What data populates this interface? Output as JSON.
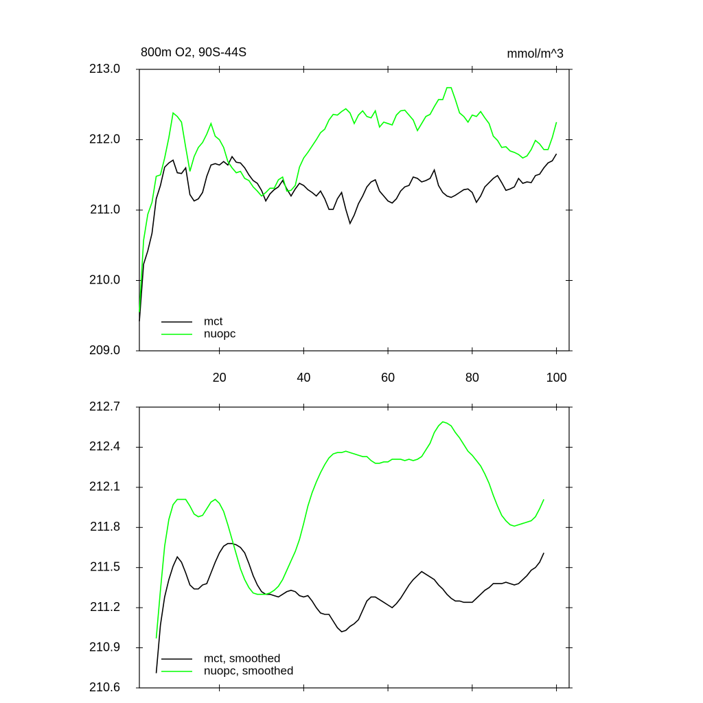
{
  "chart_data": [
    {
      "type": "line",
      "title": "800m O2, 90S-44S",
      "units": "mmol/m^3",
      "legend": "lower left",
      "x": [
        1,
        2,
        3,
        4,
        5,
        6,
        7,
        8,
        9,
        10,
        11,
        12,
        13,
        14,
        15,
        16,
        17,
        18,
        19,
        20,
        21,
        22,
        23,
        24,
        25,
        26,
        27,
        28,
        29,
        30,
        31,
        32,
        33,
        34,
        35,
        36,
        37,
        38,
        39,
        40,
        41,
        42,
        43,
        44,
        45,
        46,
        47,
        48,
        49,
        50,
        51,
        52,
        53,
        54,
        55,
        56,
        57,
        58,
        59,
        60,
        61,
        62,
        63,
        64,
        65,
        66,
        67,
        68,
        69,
        70,
        71,
        72,
        73,
        74,
        75,
        76,
        77,
        78,
        79,
        80,
        81,
        82,
        83,
        84,
        85,
        86,
        87,
        88,
        89,
        90,
        91,
        92,
        93,
        94,
        95,
        96,
        97,
        98,
        99,
        100
      ],
      "series": [
        {
          "name": "mct",
          "color": "#000000",
          "values": [
            209.42,
            210.23,
            210.42,
            210.67,
            211.16,
            211.35,
            211.61,
            211.67,
            211.71,
            211.53,
            211.52,
            211.6,
            211.22,
            211.13,
            211.16,
            211.25,
            211.48,
            211.64,
            211.66,
            211.64,
            211.69,
            211.64,
            211.76,
            211.68,
            211.67,
            211.6,
            211.5,
            211.42,
            211.38,
            211.28,
            211.13,
            211.23,
            211.29,
            211.33,
            211.42,
            211.3,
            211.2,
            211.3,
            211.38,
            211.35,
            211.29,
            211.25,
            211.2,
            211.27,
            211.16,
            211.01,
            211.01,
            211.16,
            211.25,
            211.01,
            210.81,
            210.93,
            211.09,
            211.2,
            211.33,
            211.4,
            211.43,
            211.27,
            211.2,
            211.13,
            211.1,
            211.16,
            211.27,
            211.33,
            211.35,
            211.47,
            211.45,
            211.4,
            211.42,
            211.45,
            211.57,
            211.35,
            211.25,
            211.2,
            211.18,
            211.21,
            211.25,
            211.29,
            211.3,
            211.25,
            211.11,
            211.2,
            211.33,
            211.39,
            211.45,
            211.49,
            211.39,
            211.28,
            211.3,
            211.33,
            211.45,
            211.38,
            211.4,
            211.39,
            211.49,
            211.51,
            211.6,
            211.67,
            211.7,
            211.8
          ]
        },
        {
          "name": "nuopc",
          "color": "#00ff00",
          "values": [
            209.55,
            210.57,
            210.94,
            211.11,
            211.48,
            211.5,
            211.74,
            212.03,
            212.38,
            212.33,
            212.25,
            211.89,
            211.55,
            211.76,
            211.89,
            211.96,
            212.08,
            212.23,
            212.05,
            212.0,
            211.89,
            211.69,
            211.6,
            211.53,
            211.55,
            211.45,
            211.42,
            211.33,
            211.27,
            211.2,
            211.25,
            211.31,
            211.31,
            211.43,
            211.47,
            211.27,
            211.28,
            211.35,
            211.61,
            211.74,
            211.82,
            211.91,
            212.0,
            212.1,
            212.15,
            212.28,
            212.36,
            212.35,
            212.4,
            212.44,
            212.38,
            212.23,
            212.35,
            212.41,
            212.33,
            212.31,
            212.41,
            212.18,
            212.25,
            212.23,
            212.21,
            212.35,
            212.41,
            212.42,
            212.35,
            212.28,
            212.13,
            212.23,
            212.33,
            212.36,
            212.47,
            212.57,
            212.57,
            212.74,
            212.74,
            212.57,
            212.38,
            212.33,
            212.25,
            212.35,
            212.33,
            212.4,
            212.31,
            212.23,
            212.05,
            211.99,
            211.89,
            211.9,
            211.84,
            211.82,
            211.79,
            211.74,
            211.77,
            211.86,
            211.99,
            211.94,
            211.86,
            211.86,
            212.03,
            212.25
          ]
        }
      ],
      "xlim": [
        1,
        103
      ],
      "xticks": [
        20,
        40,
        60,
        80,
        100
      ],
      "ylim": [
        209,
        213
      ],
      "yticks": [
        {
          "value": 209,
          "label": "209.0"
        },
        {
          "value": 210,
          "label": "210.0"
        },
        {
          "value": 211,
          "label": "211.0"
        },
        {
          "value": 212,
          "label": "212.0"
        },
        {
          "value": 213,
          "label": "213.0"
        }
      ]
    },
    {
      "type": "line",
      "legend": "lower left",
      "x": [
        5,
        6,
        7,
        8,
        9,
        10,
        11,
        12,
        13,
        14,
        15,
        16,
        17,
        18,
        19,
        20,
        21,
        22,
        23,
        24,
        25,
        26,
        27,
        28,
        29,
        30,
        31,
        32,
        33,
        34,
        35,
        36,
        37,
        38,
        39,
        40,
        41,
        42,
        43,
        44,
        45,
        46,
        47,
        48,
        49,
        50,
        51,
        52,
        53,
        54,
        55,
        56,
        57,
        58,
        59,
        60,
        61,
        62,
        63,
        64,
        65,
        66,
        67,
        68,
        69,
        70,
        71,
        72,
        73,
        74,
        75,
        76,
        77,
        78,
        79,
        80,
        81,
        82,
        83,
        84,
        85,
        86,
        87,
        88,
        89,
        90,
        91,
        92,
        93,
        94,
        95,
        96,
        97
      ],
      "series": [
        {
          "name": "mct, smoothed",
          "color": "#000000",
          "values": [
            210.71,
            211.07,
            211.28,
            211.41,
            211.51,
            211.58,
            211.54,
            211.46,
            211.37,
            211.34,
            211.34,
            211.37,
            211.38,
            211.46,
            211.54,
            211.61,
            211.66,
            211.68,
            211.68,
            211.67,
            211.65,
            211.61,
            211.53,
            211.44,
            211.37,
            211.32,
            211.3,
            211.3,
            211.29,
            211.28,
            211.3,
            211.32,
            211.33,
            211.32,
            211.29,
            211.28,
            211.29,
            211.25,
            211.2,
            211.16,
            211.15,
            211.15,
            211.1,
            211.05,
            211.02,
            211.03,
            211.06,
            211.08,
            211.11,
            211.18,
            211.25,
            211.28,
            211.28,
            211.26,
            211.24,
            211.22,
            211.2,
            211.23,
            211.27,
            211.32,
            211.37,
            211.41,
            211.44,
            211.47,
            211.45,
            211.43,
            211.41,
            211.37,
            211.34,
            211.3,
            211.27,
            211.25,
            211.25,
            211.24,
            211.24,
            211.24,
            211.27,
            211.3,
            211.33,
            211.35,
            211.38,
            211.38,
            211.38,
            211.39,
            211.38,
            211.37,
            211.38,
            211.41,
            211.44,
            211.48,
            211.5,
            211.54,
            211.61
          ]
        },
        {
          "name": "nuopc, smoothed",
          "color": "#00ff00",
          "values": [
            210.97,
            211.33,
            211.66,
            211.86,
            211.97,
            212.01,
            212.01,
            212.01,
            211.96,
            211.9,
            211.88,
            211.89,
            211.94,
            211.99,
            212.01,
            211.98,
            211.92,
            211.82,
            211.71,
            211.6,
            211.49,
            211.41,
            211.35,
            211.31,
            211.3,
            211.3,
            211.3,
            211.31,
            211.33,
            211.36,
            211.41,
            211.48,
            211.55,
            211.62,
            211.71,
            211.83,
            211.96,
            212.06,
            212.14,
            212.21,
            212.27,
            212.32,
            212.35,
            212.36,
            212.36,
            212.37,
            212.36,
            212.35,
            212.34,
            212.33,
            212.33,
            212.3,
            212.28,
            212.28,
            212.29,
            212.29,
            212.31,
            212.31,
            212.31,
            212.3,
            212.31,
            212.3,
            212.31,
            212.33,
            212.38,
            212.43,
            212.51,
            212.56,
            212.59,
            212.58,
            212.56,
            212.51,
            212.47,
            212.42,
            212.37,
            212.34,
            212.3,
            212.26,
            212.2,
            212.13,
            212.04,
            211.96,
            211.89,
            211.85,
            211.82,
            211.81,
            211.82,
            211.83,
            211.84,
            211.85,
            211.88,
            211.94,
            212.01
          ]
        }
      ],
      "xlim": [
        1,
        103
      ],
      "ylim": [
        210.6,
        212.7
      ],
      "yticks": [
        210.6,
        210.9,
        211.2,
        211.5,
        211.8,
        212.1,
        212.4,
        212.7
      ]
    }
  ]
}
